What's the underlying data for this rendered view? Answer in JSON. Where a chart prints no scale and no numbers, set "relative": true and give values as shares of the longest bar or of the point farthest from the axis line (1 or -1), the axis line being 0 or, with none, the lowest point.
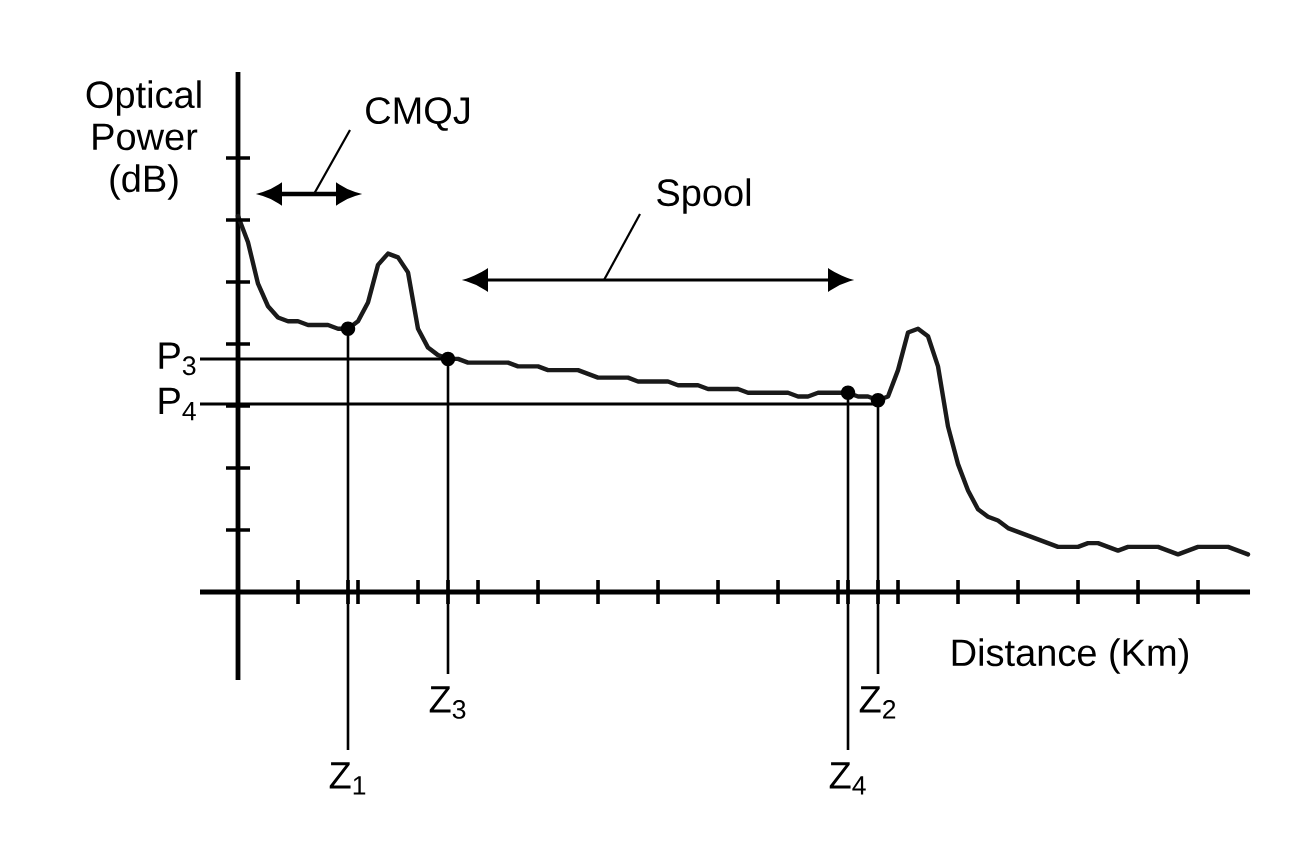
{
  "chart_data": {
    "type": "line",
    "xlabel": "Distance (Km)",
    "ylabel": "Optical Power (dB)",
    "relative": true,
    "categories": [
      null,
      null,
      null,
      null,
      null,
      null,
      null,
      null,
      null,
      null,
      null,
      "Z$_{1}$",
      null,
      null,
      null,
      null,
      null,
      null,
      null,
      null,
      null,
      "Z$_{3}$",
      null,
      null,
      null,
      null,
      null,
      null,
      null,
      null,
      null,
      null,
      null,
      null,
      null,
      null,
      null,
      null,
      null,
      null,
      null,
      null,
      null,
      null,
      null,
      null,
      null,
      null,
      null,
      null,
      null,
      null,
      null,
      null,
      null,
      null,
      null,
      null,
      null,
      null,
      null,
      "Z$_{4}$",
      null,
      null,
      "Z$_{2}$",
      null,
      null,
      null,
      null,
      null,
      null,
      null,
      null,
      null,
      null,
      null,
      null,
      null,
      null,
      null,
      null,
      null,
      null,
      null,
      null,
      null,
      null,
      null,
      null,
      null,
      null,
      null,
      null,
      null,
      null,
      null,
      null,
      null,
      null,
      null,
      null,
      null
    ],
    "series": [
      {
        "color": "#1a1a1a",
        "values": [
          1.0,
          0.93,
          0.82,
          0.76,
          0.73,
          0.72,
          0.72,
          0.71,
          0.71,
          0.71,
          0.7,
          0.7,
          0.72,
          0.77,
          0.87,
          0.9,
          0.89,
          0.85,
          0.7,
          0.65,
          0.63,
          0.62,
          0.62,
          0.61,
          0.61,
          0.61,
          0.61,
          0.61,
          0.6,
          0.6,
          0.6,
          0.59,
          0.59,
          0.59,
          0.59,
          0.58,
          0.57,
          0.57,
          0.57,
          0.57,
          0.56,
          0.56,
          0.56,
          0.56,
          0.55,
          0.55,
          0.55,
          0.54,
          0.54,
          0.54,
          0.54,
          0.53,
          0.53,
          0.53,
          0.53,
          0.53,
          0.52,
          0.52,
          0.53,
          0.53,
          0.53,
          0.53,
          0.52,
          0.52,
          0.51,
          0.52,
          0.59,
          0.69,
          0.7,
          0.68,
          0.6,
          0.44,
          0.34,
          0.27,
          0.22,
          0.2,
          0.19,
          0.17,
          0.16,
          0.15,
          0.14,
          0.13,
          0.12,
          0.12,
          0.12,
          0.13,
          0.13,
          0.12,
          0.11,
          0.12,
          0.12,
          0.12,
          0.12,
          0.11,
          0.1,
          0.11,
          0.12,
          0.12,
          0.12,
          0.12,
          0.11,
          0.1
        ]
      }
    ],
    "ref_lines": [
      {
        "axis": "y",
        "value": 0.62,
        "label": "P$_{3}$"
      },
      {
        "axis": "y",
        "value": 0.5,
        "label": "P$_{4}$"
      },
      {
        "axis": "x",
        "value": "Z$_{1}$"
      },
      {
        "axis": "x",
        "value": "Z$_{3}$"
      },
      {
        "axis": "x",
        "value": "Z$_{4}$"
      },
      {
        "axis": "x",
        "value": "Z$_{2}$"
      }
    ],
    "annotations": [
      "CMQJ",
      "Spool"
    ]
  }
}
